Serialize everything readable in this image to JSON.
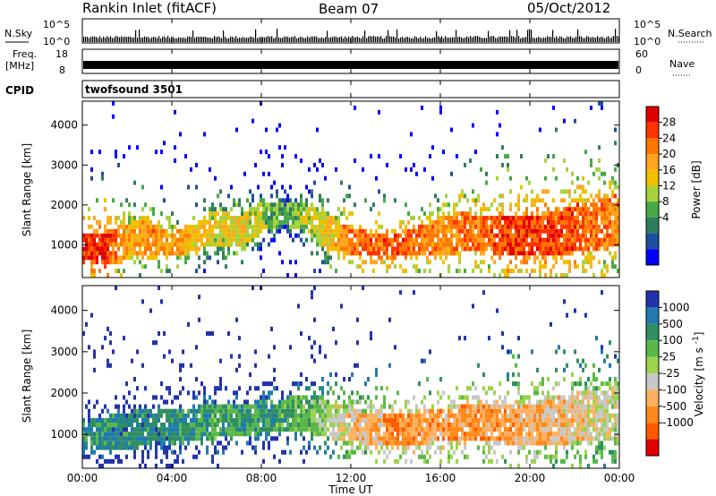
{
  "header": {
    "station": "Rankin Inlet (fitACF)",
    "beam": "Beam 07",
    "date": "05/Oct/2012"
  },
  "strips": {
    "nsky_label": "N.Sky",
    "nsearch_label": "N.Search",
    "nsky_ticks": [
      "10^5",
      "10^0"
    ],
    "nsearch_ticks": [
      "10^5",
      "10^0"
    ],
    "freq_label": "Freq.",
    "freq_unit": "[MHz]",
    "freq_ticks": [
      "18",
      "8"
    ],
    "nave_label": "Nave",
    "nave_ticks": [
      "60",
      "0"
    ],
    "cpid_label": "CPID",
    "cpid_value": "twofsound 3501"
  },
  "chart_data": [
    {
      "type": "heatmap",
      "title": "",
      "xlabel": "Time UT",
      "ylabel": "Slant Range [km]",
      "xlim": [
        "00:00",
        "24:00"
      ],
      "ylim": [
        180,
        4600
      ],
      "x_ticks": [
        "00:00",
        "04:00",
        "08:00",
        "12:00",
        "16:00",
        "20:00",
        "00:00"
      ],
      "y_ticks": [
        "1000",
        "2000",
        "3000",
        "4000"
      ],
      "colorbar": {
        "label": "Power [dB]",
        "ticks": [
          "28",
          "24",
          "20",
          "16",
          "12",
          "8",
          "4"
        ],
        "colors": [
          "#e00000",
          "#ff3300",
          "#ff7700",
          "#ffa51f",
          "#f0c000",
          "#a8d23c",
          "#46a846",
          "#2e7d5c",
          "#1e4fa0",
          "#0000ff"
        ]
      },
      "scatter_band_km": [
        {
          "time": "00:00",
          "center": 950,
          "width": 700,
          "level": 0.85
        },
        {
          "time": "01:00",
          "center": 900,
          "width": 800,
          "level": 0.9
        },
        {
          "time": "02:00",
          "center": 1100,
          "width": 900,
          "level": 0.6
        },
        {
          "time": "03:00",
          "center": 1200,
          "width": 800,
          "level": 0.7
        },
        {
          "time": "04:00",
          "center": 1000,
          "width": 600,
          "level": 0.65
        },
        {
          "time": "05:00",
          "center": 1200,
          "width": 700,
          "level": 0.6
        },
        {
          "time": "06:00",
          "center": 1450,
          "width": 900,
          "level": 0.5
        },
        {
          "time": "07:00",
          "center": 1300,
          "width": 800,
          "level": 0.55
        },
        {
          "time": "08:00",
          "center": 1700,
          "width": 800,
          "level": 0.45
        },
        {
          "time": "09:00",
          "center": 1800,
          "width": 600,
          "level": 0.3
        },
        {
          "time": "10:00",
          "center": 1650,
          "width": 700,
          "level": 0.45
        },
        {
          "time": "11:00",
          "center": 1300,
          "width": 900,
          "level": 0.55
        },
        {
          "time": "12:00",
          "center": 1100,
          "width": 700,
          "level": 0.75
        },
        {
          "time": "13:00",
          "center": 1000,
          "width": 600,
          "level": 0.8
        },
        {
          "time": "14:00",
          "center": 1000,
          "width": 600,
          "level": 0.8
        },
        {
          "time": "15:00",
          "center": 1100,
          "width": 700,
          "level": 0.75
        },
        {
          "time": "16:00",
          "center": 1200,
          "width": 900,
          "level": 0.7
        },
        {
          "time": "17:00",
          "center": 1300,
          "width": 1000,
          "level": 0.72
        },
        {
          "time": "18:00",
          "center": 1300,
          "width": 900,
          "level": 0.75
        },
        {
          "time": "19:00",
          "center": 1200,
          "width": 1000,
          "level": 0.85
        },
        {
          "time": "20:00",
          "center": 1200,
          "width": 1000,
          "level": 0.85
        },
        {
          "time": "21:00",
          "center": 1250,
          "width": 1100,
          "level": 0.82
        },
        {
          "time": "22:00",
          "center": 1400,
          "width": 1200,
          "level": 0.8
        },
        {
          "time": "23:00",
          "center": 1500,
          "width": 1300,
          "level": 0.75
        },
        {
          "time": "24:00",
          "center": 1600,
          "width": 1300,
          "level": 0.7
        }
      ]
    },
    {
      "type": "heatmap",
      "title": "",
      "xlabel": "Time UT",
      "ylabel": "Slant Range [km]",
      "xlim": [
        "00:00",
        "24:00"
      ],
      "ylim": [
        180,
        4600
      ],
      "x_ticks": [
        "00:00",
        "04:00",
        "08:00",
        "12:00",
        "16:00",
        "20:00",
        "00:00"
      ],
      "y_ticks": [
        "1000",
        "2000",
        "3000",
        "4000"
      ],
      "colorbar": {
        "label": "Velocity [m s^-1]",
        "ticks": [
          "1000",
          "500",
          "100",
          "25",
          "-25",
          "-100",
          "-500",
          "-1000"
        ],
        "colors": [
          "#2233aa",
          "#1f7ab0",
          "#2f8f60",
          "#5ab84a",
          "#9bd34e",
          "#c8c8c8",
          "#ffb060",
          "#ff8a1a",
          "#ff5a00",
          "#e00000"
        ]
      },
      "scatter_band_km": [
        {
          "time": "00:00",
          "center": 950,
          "width": 700,
          "level": 0.25
        },
        {
          "time": "02:00",
          "center": 1100,
          "width": 900,
          "level": 0.2
        },
        {
          "time": "04:00",
          "center": 1200,
          "width": 900,
          "level": 0.2
        },
        {
          "time": "06:00",
          "center": 1300,
          "width": 800,
          "level": 0.3
        },
        {
          "time": "08:00",
          "center": 1400,
          "width": 800,
          "level": 0.25
        },
        {
          "time": "10:00",
          "center": 1500,
          "width": 900,
          "level": 0.35
        },
        {
          "time": "12:00",
          "center": 1200,
          "width": 800,
          "level": 0.6
        },
        {
          "time": "14:00",
          "center": 1100,
          "width": 700,
          "level": 0.75
        },
        {
          "time": "16:00",
          "center": 1200,
          "width": 800,
          "level": 0.7
        },
        {
          "time": "18:00",
          "center": 1300,
          "width": 900,
          "level": 0.72
        },
        {
          "time": "20:00",
          "center": 1200,
          "width": 1000,
          "level": 0.68
        },
        {
          "time": "22:00",
          "center": 1400,
          "width": 1200,
          "level": 0.6
        },
        {
          "time": "24:00",
          "center": 1500,
          "width": 1300,
          "level": 0.5
        }
      ]
    }
  ]
}
